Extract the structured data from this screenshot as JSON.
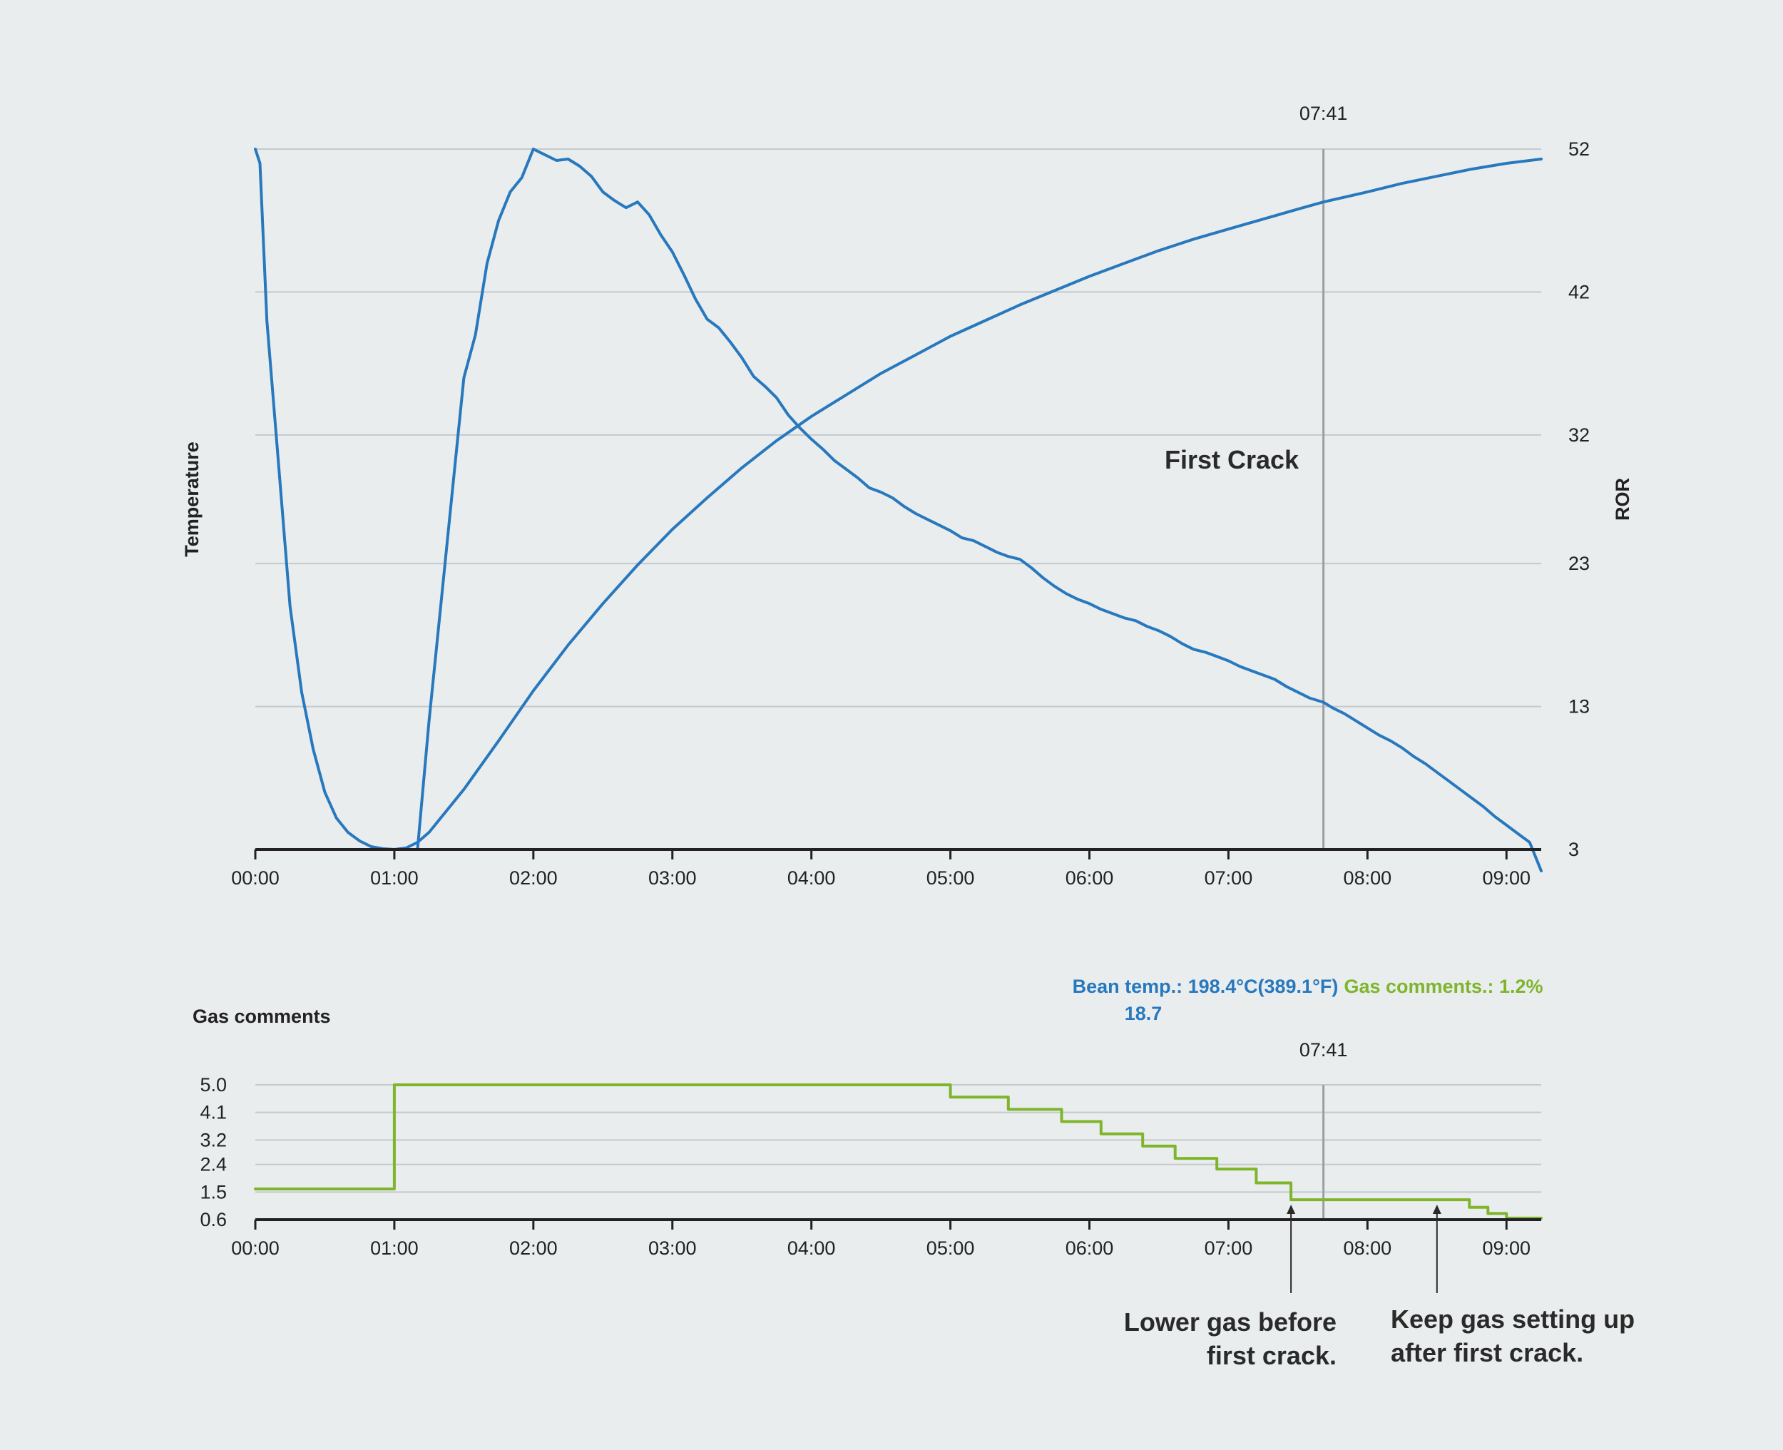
{
  "colors": {
    "background": "#e9edee",
    "temperature_line": "#2878be",
    "gas_line": "#7fb52b",
    "grid": "#c4c9cc",
    "marker": "#9a9fa3",
    "axis": "#222222",
    "text": "#222222"
  },
  "chart_data": [
    {
      "type": "line",
      "x_unit": "mm:ss",
      "xlim": [
        "00:00",
        "09:15"
      ],
      "x_ticks": [
        "00:00",
        "01:00",
        "02:00",
        "03:00",
        "04:00",
        "05:00",
        "06:00",
        "07:00",
        "08:00",
        "09:00"
      ],
      "ylabel": "Temperature",
      "y2label": "ROR",
      "ylim": [
        3,
        52
      ],
      "y_ticks": [
        "3",
        "13",
        "23",
        "32",
        "42",
        "52"
      ],
      "grid": true,
      "marker": {
        "x": "07:41",
        "label": "07:41"
      },
      "annotation": {
        "text": "First Crack",
        "x": "07:41"
      },
      "series": [
        {
          "points": [
            [
              "00:00",
              52
            ],
            [
              "00:02",
              51
            ],
            [
              "00:05",
              40
            ],
            [
              "00:10",
              30
            ],
            [
              "00:15",
              20
            ],
            [
              "00:20",
              14
            ],
            [
              "00:25",
              10
            ],
            [
              "00:30",
              7
            ],
            [
              "00:35",
              5.2
            ],
            [
              "00:40",
              4.2
            ],
            [
              "00:45",
              3.6
            ],
            [
              "00:50",
              3.2
            ],
            [
              "00:55",
              3.05
            ],
            [
              "01:00",
              3
            ],
            [
              "01:05",
              3.1
            ],
            [
              "01:10",
              3.5
            ],
            [
              "01:15",
              4.2
            ],
            [
              "01:20",
              5.2
            ],
            [
              "01:30",
              7.2
            ],
            [
              "01:45",
              10.6
            ],
            [
              "02:00",
              14.1
            ],
            [
              "02:15",
              17.3
            ],
            [
              "02:30",
              20.2
            ],
            [
              "02:45",
              22.9
            ],
            [
              "03:00",
              25.4
            ],
            [
              "03:15",
              27.6
            ],
            [
              "03:30",
              29.7
            ],
            [
              "03:45",
              31.6
            ],
            [
              "04:00",
              33.3
            ],
            [
              "04:15",
              34.8
            ],
            [
              "04:30",
              36.3
            ],
            [
              "04:45",
              37.6
            ],
            [
              "05:00",
              38.9
            ],
            [
              "05:15",
              40.0
            ],
            [
              "05:30",
              41.1
            ],
            [
              "05:45",
              42.1
            ],
            [
              "06:00",
              43.1
            ],
            [
              "06:15",
              44.0
            ],
            [
              "06:30",
              44.9
            ],
            [
              "06:45",
              45.7
            ],
            [
              "07:00",
              46.4
            ],
            [
              "07:15",
              47.1
            ],
            [
              "07:30",
              47.8
            ],
            [
              "07:41",
              48.3
            ],
            [
              "08:00",
              49.0
            ],
            [
              "08:15",
              49.6
            ],
            [
              "08:30",
              50.1
            ],
            [
              "08:45",
              50.6
            ],
            [
              "09:00",
              51.0
            ],
            [
              "09:15",
              51.3
            ]
          ]
        },
        {
          "points": [
            [
              "01:10",
              3
            ],
            [
              "01:15",
              12
            ],
            [
              "01:20",
              20
            ],
            [
              "01:25",
              28
            ],
            [
              "01:30",
              36
            ],
            [
              "01:35",
              39
            ],
            [
              "01:40",
              44
            ],
            [
              "01:45",
              47
            ],
            [
              "01:50",
              49
            ],
            [
              "01:55",
              50
            ],
            [
              "02:00",
              52
            ],
            [
              "02:05",
              51.6
            ],
            [
              "02:10",
              51.2
            ],
            [
              "02:15",
              51.3
            ],
            [
              "02:20",
              50.8
            ],
            [
              "02:25",
              50.1
            ],
            [
              "02:30",
              49.0
            ],
            [
              "02:35",
              48.4
            ],
            [
              "02:40",
              47.9
            ],
            [
              "02:45",
              48.3
            ],
            [
              "02:50",
              47.4
            ],
            [
              "02:55",
              46.0
            ],
            [
              "03:00",
              44.8
            ],
            [
              "03:05",
              43.2
            ],
            [
              "03:10",
              41.5
            ],
            [
              "03:15",
              40.1
            ],
            [
              "03:20",
              39.5
            ],
            [
              "03:25",
              38.5
            ],
            [
              "03:30",
              37.4
            ],
            [
              "03:35",
              36.1
            ],
            [
              "03:40",
              35.4
            ],
            [
              "03:45",
              34.6
            ],
            [
              "03:50",
              33.4
            ],
            [
              "03:55",
              32.5
            ],
            [
              "04:00",
              31.7
            ],
            [
              "04:05",
              31.0
            ],
            [
              "04:10",
              30.2
            ],
            [
              "04:15",
              29.6
            ],
            [
              "04:20",
              29.0
            ],
            [
              "04:25",
              28.3
            ],
            [
              "04:30",
              28.0
            ],
            [
              "04:35",
              27.6
            ],
            [
              "04:40",
              27.0
            ],
            [
              "04:45",
              26.5
            ],
            [
              "04:50",
              26.1
            ],
            [
              "04:55",
              25.7
            ],
            [
              "05:00",
              25.3
            ],
            [
              "05:05",
              24.8
            ],
            [
              "05:10",
              24.6
            ],
            [
              "05:15",
              24.2
            ],
            [
              "05:20",
              23.8
            ],
            [
              "05:25",
              23.5
            ],
            [
              "05:30",
              23.3
            ],
            [
              "05:35",
              22.7
            ],
            [
              "05:40",
              22.0
            ],
            [
              "05:45",
              21.4
            ],
            [
              "05:50",
              20.9
            ],
            [
              "05:55",
              20.5
            ],
            [
              "06:00",
              20.2
            ],
            [
              "06:05",
              19.8
            ],
            [
              "06:10",
              19.5
            ],
            [
              "06:15",
              19.2
            ],
            [
              "06:20",
              19.0
            ],
            [
              "06:25",
              18.6
            ],
            [
              "06:30",
              18.3
            ],
            [
              "06:35",
              17.9
            ],
            [
              "06:40",
              17.4
            ],
            [
              "06:45",
              17.0
            ],
            [
              "06:50",
              16.8
            ],
            [
              "06:55",
              16.5
            ],
            [
              "07:00",
              16.2
            ],
            [
              "07:05",
              15.8
            ],
            [
              "07:10",
              15.5
            ],
            [
              "07:15",
              15.2
            ],
            [
              "07:20",
              14.9
            ],
            [
              "07:25",
              14.4
            ],
            [
              "07:30",
              14.0
            ],
            [
              "07:35",
              13.6
            ],
            [
              "07:41",
              13.3
            ],
            [
              "07:45",
              12.9
            ],
            [
              "07:50",
              12.5
            ],
            [
              "07:55",
              12.0
            ],
            [
              "08:00",
              11.5
            ],
            [
              "08:05",
              11.0
            ],
            [
              "08:10",
              10.6
            ],
            [
              "08:15",
              10.1
            ],
            [
              "08:20",
              9.5
            ],
            [
              "08:25",
              9.0
            ],
            [
              "08:30",
              8.4
            ],
            [
              "08:35",
              7.8
            ],
            [
              "08:40",
              7.2
            ],
            [
              "08:45",
              6.6
            ],
            [
              "08:50",
              6.0
            ],
            [
              "08:55",
              5.3
            ],
            [
              "09:00",
              4.7
            ],
            [
              "09:05",
              4.1
            ],
            [
              "09:10",
              3.5
            ],
            [
              "09:15",
              1.5
            ]
          ]
        }
      ]
    },
    {
      "type": "line",
      "title": "Gas comments",
      "x_unit": "mm:ss",
      "xlim": [
        "00:00",
        "09:15"
      ],
      "x_ticks": [
        "00:00",
        "01:00",
        "02:00",
        "03:00",
        "04:00",
        "05:00",
        "06:00",
        "07:00",
        "08:00",
        "09:00"
      ],
      "ylim": [
        0.6,
        5.0
      ],
      "y_ticks": [
        "0.6",
        "1.5",
        "2.4",
        "3.2",
        "4.1",
        "5.0"
      ],
      "grid": true,
      "step": true,
      "marker": {
        "x": "07:41",
        "label": "07:41"
      },
      "series": [
        {
          "points": [
            [
              "00:00",
              1.6
            ],
            [
              "01:00",
              1.6
            ],
            [
              "01:00",
              5.0
            ],
            [
              "05:00",
              5.0
            ],
            [
              "05:00",
              4.6
            ],
            [
              "05:25",
              4.6
            ],
            [
              "05:25",
              4.2
            ],
            [
              "05:48",
              4.2
            ],
            [
              "05:48",
              3.8
            ],
            [
              "06:05",
              3.8
            ],
            [
              "06:05",
              3.4
            ],
            [
              "06:23",
              3.4
            ],
            [
              "06:23",
              3.0
            ],
            [
              "06:37",
              3.0
            ],
            [
              "06:37",
              2.6
            ],
            [
              "06:55",
              2.6
            ],
            [
              "06:55",
              2.25
            ],
            [
              "07:12",
              2.25
            ],
            [
              "07:12",
              1.8
            ],
            [
              "07:27",
              1.8
            ],
            [
              "07:27",
              1.25
            ],
            [
              "08:44",
              1.25
            ],
            [
              "08:44",
              1.0
            ],
            [
              "08:52",
              1.0
            ],
            [
              "08:52",
              0.8
            ],
            [
              "09:00",
              0.8
            ],
            [
              "09:00",
              0.65
            ],
            [
              "09:15",
              0.65
            ]
          ]
        }
      ],
      "annotations": [
        {
          "text_lines": [
            "Lower gas before",
            "first crack."
          ],
          "x": "07:27"
        },
        {
          "text_lines": [
            "Keep gas setting up",
            "after first crack."
          ],
          "x": "08:30"
        }
      ]
    }
  ],
  "readout": {
    "bean_temp": "Bean temp.: 198.4°C(389.1°F)",
    "ror_value": "18.7",
    "gas": "Gas comments.: 1.2%"
  }
}
